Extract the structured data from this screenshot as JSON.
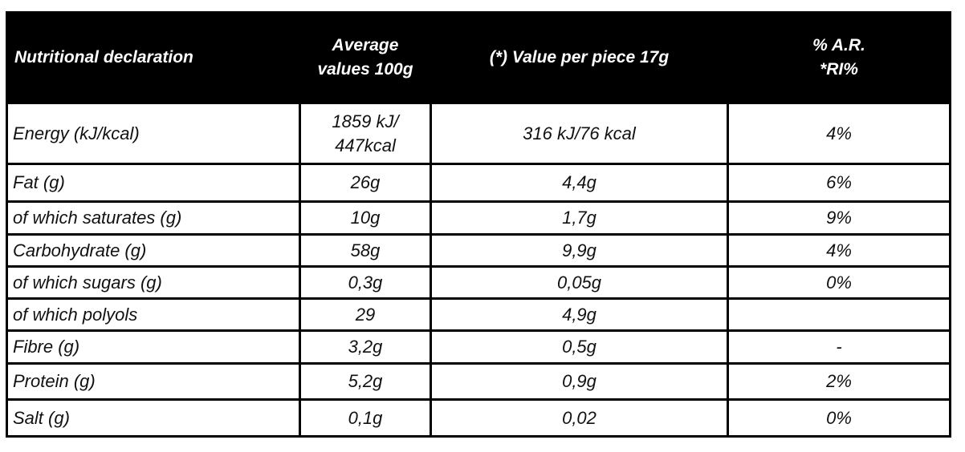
{
  "table": {
    "header": [
      "Nutritional declaration",
      [
        "Average",
        "values 100g"
      ],
      "(*) Value per piece 17g",
      [
        "% A.R.",
        "*RI%"
      ]
    ],
    "rows": [
      [
        "Energy (kJ/kcal)",
        [
          "1859 kJ/",
          "447kcal"
        ],
        "316 kJ/76 kcal",
        "4%"
      ],
      [
        "Fat (g)",
        "26g",
        "4,4g",
        "6%"
      ],
      [
        "of which saturates (g)",
        "10g",
        "1,7g",
        "9%"
      ],
      [
        "Carbohydrate (g)",
        "58g",
        "9,9g",
        "4%"
      ],
      [
        "of which sugars (g)",
        "0,3g",
        "0,05g",
        "0%"
      ],
      [
        "of which polyols",
        "29",
        "4,9g",
        null
      ],
      [
        "Fibre (g)",
        "3,2g",
        "0,5g",
        "-"
      ],
      [
        "Protein (g)",
        "5,2g",
        "0,9g",
        "2%"
      ],
      [
        "Salt (g)",
        "0,1g",
        "0,02",
        "0%"
      ]
    ]
  }
}
